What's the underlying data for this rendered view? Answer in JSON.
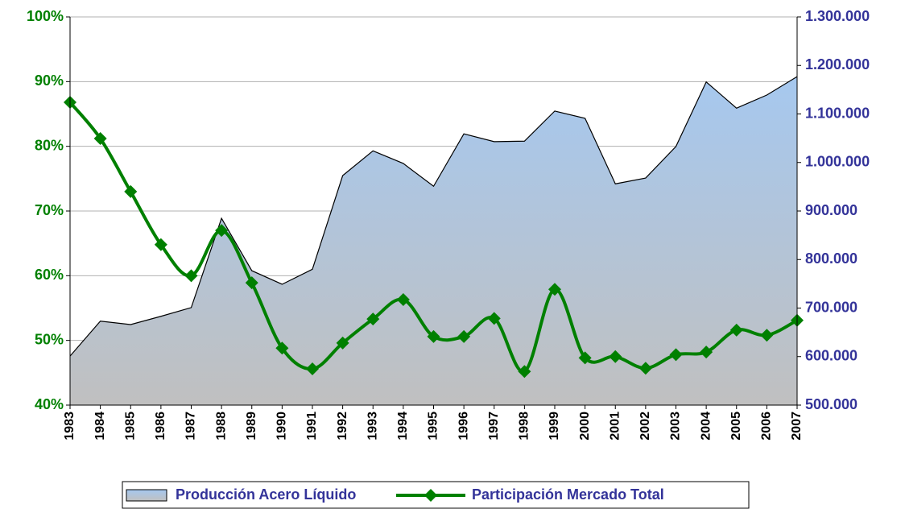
{
  "chart_data": {
    "type": "combo",
    "categories": [
      "1983",
      "1984",
      "1985",
      "1986",
      "1987",
      "1988",
      "1989",
      "1990",
      "1991",
      "1992",
      "1993",
      "1994",
      "1995",
      "1996",
      "1997",
      "1998",
      "1999",
      "2000",
      "2001",
      "2002",
      "2003",
      "2004",
      "2005",
      "2006",
      "2007"
    ],
    "series": [
      {
        "name": "Producción Acero Líquido",
        "type": "area",
        "axis": "y2",
        "color": "#a6c8ef",
        "values": [
          601000,
          673000,
          666000,
          683000,
          701000,
          885000,
          777000,
          749000,
          780000,
          973000,
          1024000,
          998000,
          951000,
          1059000,
          1043000,
          1044000,
          1106000,
          1091000,
          956000,
          968000,
          1033000,
          1166000,
          1112000,
          1139000,
          1177000
        ]
      },
      {
        "name": "Participación Mercado Total",
        "type": "line",
        "axis": "y",
        "color": "#008000",
        "values": [
          86.8,
          81.2,
          73.0,
          64.8,
          60.0,
          67.0,
          58.9,
          48.8,
          45.6,
          49.6,
          53.3,
          56.3,
          50.6,
          50.6,
          53.4,
          45.2,
          57.9,
          47.3,
          47.5,
          45.7,
          47.8,
          48.2,
          51.6,
          50.8,
          53.1
        ]
      }
    ],
    "ylim": [
      40,
      100
    ],
    "yticks": [
      {
        "value": 40,
        "label": "40%"
      },
      {
        "value": 50,
        "label": "50%"
      },
      {
        "value": 60,
        "label": "60%"
      },
      {
        "value": 70,
        "label": "70%"
      },
      {
        "value": 80,
        "label": "80%"
      },
      {
        "value": 90,
        "label": "90%"
      },
      {
        "value": 100,
        "label": "100%"
      }
    ],
    "y2lim": [
      500000,
      1300000
    ],
    "y2ticks": [
      {
        "value": 500000,
        "label": "500.000"
      },
      {
        "value": 600000,
        "label": "600.000"
      },
      {
        "value": 700000,
        "label": "700.000"
      },
      {
        "value": 800000,
        "label": "800.000"
      },
      {
        "value": 900000,
        "label": "900.000"
      },
      {
        "value": 1000000,
        "label": "1.000.000"
      },
      {
        "value": 1100000,
        "label": "1.100.000"
      },
      {
        "value": 1200000,
        "label": "1.200.000"
      },
      {
        "value": 1300000,
        "label": "1.300.000"
      }
    ],
    "grid": true,
    "legend": "bottom"
  }
}
